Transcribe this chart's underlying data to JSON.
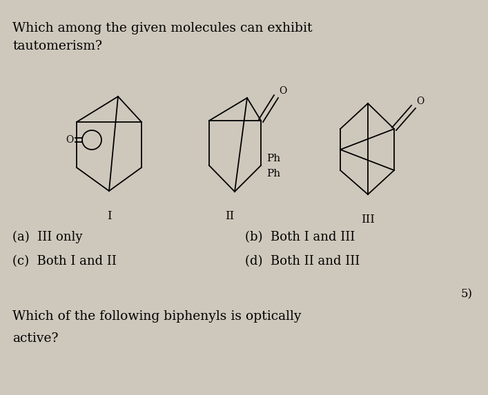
{
  "bg_color": "#cec8bc",
  "title_line1": "Which among the given molecules can exhibit",
  "title_line2": "tautomerism?",
  "options_left": [
    "(a)  III only",
    "(c)  Both I and II"
  ],
  "options_right": [
    "(b)  Both I and III",
    "(d)  Both II and III"
  ],
  "labels": [
    "I",
    "II",
    "III"
  ],
  "bottom_line1": "Which of the following biphenyls is optically",
  "bottom_line2": "active?",
  "footer_symbol": "5)",
  "font_size_title": 13.5,
  "font_size_options": 13,
  "font_size_bottom": 13.5,
  "font_size_label": 12
}
